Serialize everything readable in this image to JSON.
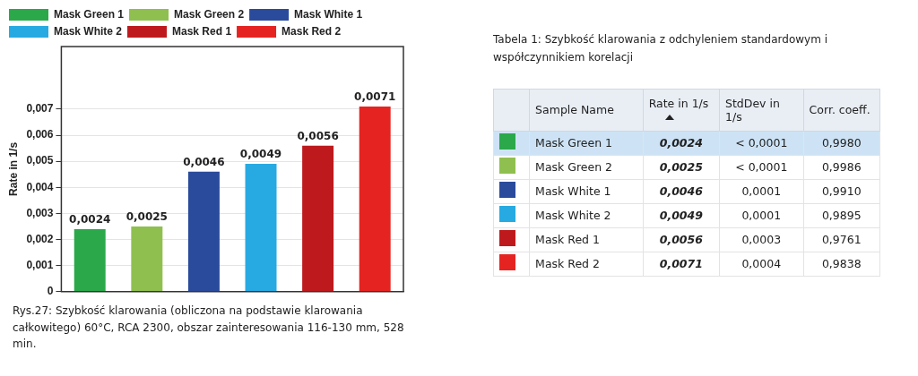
{
  "chart_data": [
    {
      "type": "bar",
      "ylabel": "Rate in 1/s",
      "categories": [
        null,
        null,
        null,
        null,
        null,
        null
      ],
      "series": [
        {
          "name": "Mask Green 1",
          "color": "#2aa84a",
          "values": [
            0.0024,
            null,
            null,
            null,
            null,
            null
          ],
          "value_labels": [
            "0,0024",
            null,
            null,
            null,
            null,
            null
          ]
        },
        {
          "name": "Mask Green 2",
          "color": "#8fc04f",
          "values": [
            null,
            0.0025,
            null,
            null,
            null,
            null
          ],
          "value_labels": [
            null,
            "0,0025",
            null,
            null,
            null,
            null
          ]
        },
        {
          "name": "Mask White 1",
          "color": "#2a4b9c",
          "values": [
            null,
            null,
            0.0046,
            null,
            null,
            null
          ],
          "value_labels": [
            null,
            null,
            "0,0046",
            null,
            null,
            null
          ]
        },
        {
          "name": "Mask White 2",
          "color": "#27aae2",
          "values": [
            null,
            null,
            null,
            0.0049,
            null,
            null
          ],
          "value_labels": [
            null,
            null,
            null,
            "0,0049",
            null,
            null
          ]
        },
        {
          "name": "Mask Red 1",
          "color": "#be1a1d",
          "values": [
            null,
            null,
            null,
            null,
            0.0056,
            null
          ],
          "value_labels": [
            null,
            null,
            null,
            null,
            "0,0056",
            null
          ]
        },
        {
          "name": "Mask Red 2",
          "color": "#e52421",
          "values": [
            null,
            null,
            null,
            null,
            null,
            0.0071
          ],
          "value_labels": [
            null,
            null,
            null,
            null,
            null,
            "0,0071"
          ]
        }
      ],
      "ylim": [
        0,
        0.0094
      ],
      "yticks": [
        {
          "value": 0,
          "label": "0"
        },
        {
          "value": 0.001,
          "label": "0,001"
        },
        {
          "value": 0.002,
          "label": "0,002"
        },
        {
          "value": 0.003,
          "label": "0,003"
        },
        {
          "value": 0.004,
          "label": "0,004"
        },
        {
          "value": 0.005,
          "label": "0,005"
        },
        {
          "value": 0.006,
          "label": "0,006"
        },
        {
          "value": 0.007,
          "label": "0,007"
        }
      ],
      "grid": "y",
      "legend": "top",
      "annotations": [
        "Rys.27: Szybkość klarowania (obliczona na podstawie klarowania całkowitego) 60°C, RCA 2300, obszar zainteresowania 116-130 mm, 528 min."
      ]
    },
    {
      "type": "other",
      "title": "Tabela 1: Szybkość klarowania z odchyleniem standardowym i współczynnikiem korelacji",
      "categories": [
        "Sample Name",
        "Rate in 1/s",
        "StdDev in 1/s",
        "Corr. coeff."
      ],
      "y_categories": [
        "Mask Green 1",
        "Mask Green 2",
        "Mask White 1",
        "Mask White 2",
        "Mask Red 1",
        "Mask Red 2"
      ],
      "cell_labels": [
        [
          "0,0024",
          "< 0,0001",
          "0,9980"
        ],
        [
          "0,0025",
          "< 0,0001",
          "0,9986"
        ],
        [
          "0,0046",
          "0,0001",
          "0,9910"
        ],
        [
          "0,0049",
          "0,0001",
          "0,9895"
        ],
        [
          "0,0056",
          "0,0003",
          "0,9761"
        ],
        [
          "0,0071",
          "0,0004",
          "0,9838"
        ]
      ]
    }
  ]
}
